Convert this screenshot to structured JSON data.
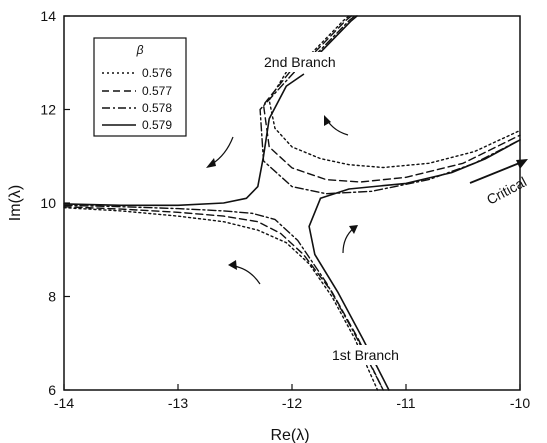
{
  "chart_data": {
    "type": "line",
    "xlabel": "Re(λ)",
    "ylabel": "Im(λ)",
    "xlim": [
      -14,
      -10
    ],
    "ylim": [
      6,
      14
    ],
    "x_ticks": [
      "-14",
      "-13",
      "-12",
      "-11",
      "-10"
    ],
    "y_ticks": [
      "6",
      "8",
      "10",
      "12",
      "14"
    ],
    "grid": false,
    "legend": {
      "title": "β",
      "placement": "top-left",
      "entries": [
        "0.576",
        "0.577",
        "0.578",
        "0.579"
      ]
    },
    "annotations": {
      "branch1": "1st Branch",
      "branch2": "2nd Branch",
      "critical": "Critical"
    },
    "series": [
      {
        "name": "0.576",
        "dash": "dotted",
        "segments": [
          [
            [
              -14,
              9.9
            ],
            [
              -13.5,
              9.83
            ],
            [
              -13.0,
              9.72
            ],
            [
              -12.6,
              9.6
            ],
            [
              -12.3,
              9.42
            ],
            [
              -12.05,
              9.15
            ],
            [
              -11.85,
              8.7
            ],
            [
              -11.65,
              8.0
            ],
            [
              -11.45,
              7.1
            ],
            [
              -11.25,
              6.0
            ]
          ],
          [
            [
              -12.05,
              12.8
            ],
            [
              -12.2,
              12.2
            ],
            [
              -12.15,
              11.6
            ],
            [
              -12.0,
              11.2
            ],
            [
              -11.75,
              10.95
            ],
            [
              -11.5,
              10.82
            ],
            [
              -11.2,
              10.76
            ],
            [
              -10.8,
              10.85
            ],
            [
              -10.4,
              11.1
            ],
            [
              -10.0,
              11.55
            ]
          ],
          [
            [
              -11.95,
              12.9
            ],
            [
              -11.75,
              13.4
            ],
            [
              -11.55,
              13.9
            ],
            [
              -11.5,
              14.0
            ]
          ]
        ]
      },
      {
        "name": "0.577",
        "dash": "dashed",
        "segments": [
          [
            [
              -14,
              9.92
            ],
            [
              -13.5,
              9.87
            ],
            [
              -13.0,
              9.8
            ],
            [
              -12.6,
              9.72
            ],
            [
              -12.3,
              9.6
            ],
            [
              -12.1,
              9.35
            ],
            [
              -11.9,
              8.9
            ],
            [
              -11.65,
              8.1
            ],
            [
              -11.42,
              7.1
            ],
            [
              -11.2,
              6.0
            ]
          ],
          [
            [
              -12.02,
              12.8
            ],
            [
              -12.25,
              12.1
            ],
            [
              -12.2,
              11.2
            ],
            [
              -12.0,
              10.75
            ],
            [
              -11.7,
              10.5
            ],
            [
              -11.4,
              10.45
            ],
            [
              -11.0,
              10.55
            ],
            [
              -10.5,
              10.85
            ],
            [
              -10.0,
              11.45
            ]
          ],
          [
            [
              -11.93,
              12.9
            ],
            [
              -11.73,
              13.4
            ],
            [
              -11.53,
              13.9
            ],
            [
              -11.48,
              14.0
            ]
          ]
        ]
      },
      {
        "name": "0.578",
        "dash": "dashdot",
        "segments": [
          [
            [
              -14,
              9.95
            ],
            [
              -13.5,
              9.92
            ],
            [
              -13.0,
              9.88
            ],
            [
              -12.6,
              9.83
            ],
            [
              -12.35,
              9.78
            ],
            [
              -12.15,
              9.65
            ],
            [
              -11.95,
              9.2
            ],
            [
              -11.7,
              8.3
            ],
            [
              -11.45,
              7.2
            ],
            [
              -11.2,
              6.0
            ]
          ],
          [
            [
              -11.98,
              12.8
            ],
            [
              -12.28,
              12.0
            ],
            [
              -12.25,
              10.9
            ],
            [
              -12.0,
              10.35
            ],
            [
              -11.7,
              10.2
            ],
            [
              -11.3,
              10.25
            ],
            [
              -10.8,
              10.5
            ],
            [
              -10.4,
              10.85
            ],
            [
              -10.0,
              11.35
            ]
          ],
          [
            [
              -11.9,
              12.9
            ],
            [
              -11.7,
              13.4
            ],
            [
              -11.5,
              13.9
            ],
            [
              -11.45,
              14.0
            ]
          ]
        ]
      },
      {
        "name": "0.579",
        "dash": "solid",
        "segments": [
          [
            [
              -14,
              9.98
            ],
            [
              -13.5,
              9.95
            ],
            [
              -13.0,
              9.95
            ],
            [
              -12.6,
              10.0
            ],
            [
              -12.4,
              10.1
            ],
            [
              -12.3,
              10.35
            ],
            [
              -12.25,
              11.0
            ],
            [
              -12.2,
              11.8
            ],
            [
              -12.05,
              12.5
            ],
            [
              -11.9,
              12.75
            ]
          ],
          [
            [
              -11.75,
              10.1
            ],
            [
              -11.5,
              10.3
            ],
            [
              -11.0,
              10.42
            ],
            [
              -10.6,
              10.65
            ],
            [
              -10.3,
              10.95
            ],
            [
              -10.0,
              11.35
            ]
          ],
          [
            [
              -11.75,
              10.1
            ],
            [
              -11.85,
              9.5
            ],
            [
              -11.8,
              8.9
            ],
            [
              -11.6,
              8.1
            ],
            [
              -11.38,
              7.1
            ],
            [
              -11.15,
              6.0
            ]
          ],
          [
            [
              -11.88,
              12.9
            ],
            [
              -11.68,
              13.4
            ],
            [
              -11.48,
              13.9
            ],
            [
              -11.43,
              14.0
            ]
          ]
        ]
      }
    ]
  }
}
